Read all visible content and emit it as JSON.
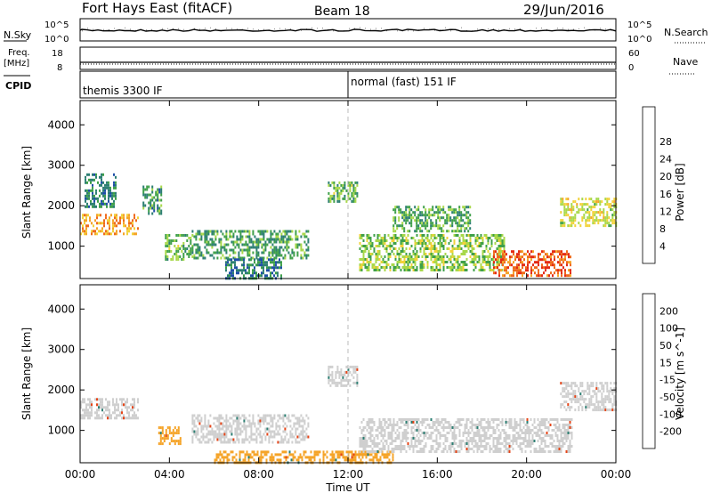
{
  "header": {
    "title": "Fort Hays East (fitACF)",
    "beam": "Beam 18",
    "date": "29/Jun/2016"
  },
  "top_panels": {
    "nsky_label": "N.Sky",
    "nsky_ticks": [
      "10^5",
      "10^0"
    ],
    "nsearch_label": "N.Search",
    "nsearch_ticks": [
      "10^5",
      "10^0"
    ],
    "freq_label_1": "Freq.",
    "freq_label_2": "[MHz]",
    "freq_ticks": [
      "18",
      "8"
    ],
    "nave_label": "Nave",
    "nave_ticks": [
      "60",
      "0"
    ],
    "cpid_label": "CPID",
    "cpid_segments": [
      {
        "label": "themis 3300 IF",
        "start_hour": 0
      },
      {
        "label": "normal (fast) 151 IF",
        "start_hour": 12
      }
    ]
  },
  "chart_data": [
    {
      "type": "heatmap",
      "quantity": "Power",
      "ylabel": "Slant Range [km]",
      "xlabel": "Time UT",
      "x_ticks": [
        "00:00",
        "04:00",
        "08:00",
        "12:00",
        "16:00",
        "20:00",
        "00:00"
      ],
      "y_ticks": [
        1000,
        2000,
        3000,
        4000
      ],
      "ylim": [
        200,
        4600
      ],
      "xlim_hours": [
        0,
        24
      ],
      "colorbar": {
        "label": "Power [dB]",
        "ticks": [
          "4",
          "8",
          "12",
          "16",
          "20",
          "24",
          "28"
        ],
        "range": [
          0,
          30
        ],
        "colors": [
          "#0000ff",
          "#1f4fa8",
          "#2d7f73",
          "#3fa04a",
          "#a8d84a",
          "#f2d23a",
          "#f5a428",
          "#ef6a1c",
          "#e32a14"
        ]
      },
      "echo_regions": [
        {
          "t0": 0.0,
          "t1": 2.6,
          "r0": 1300,
          "r1": 1800,
          "level": 22
        },
        {
          "t0": 0.2,
          "t1": 1.6,
          "r0": 2000,
          "r1": 2800,
          "level": 9
        },
        {
          "t0": 2.8,
          "t1": 3.6,
          "r0": 1800,
          "r1": 2500,
          "level": 10
        },
        {
          "t0": 3.8,
          "t1": 5.0,
          "r0": 700,
          "r1": 1300,
          "level": 13
        },
        {
          "t0": 5.0,
          "t1": 10.2,
          "r0": 700,
          "r1": 1400,
          "level": 11
        },
        {
          "t0": 6.5,
          "t1": 9.0,
          "r0": 200,
          "r1": 700,
          "level": 8
        },
        {
          "t0": 11.1,
          "t1": 12.4,
          "r0": 2100,
          "r1": 2600,
          "level": 13
        },
        {
          "t0": 12.5,
          "t1": 19.0,
          "r0": 400,
          "r1": 1300,
          "level": 14
        },
        {
          "t0": 18.5,
          "t1": 22.0,
          "r0": 300,
          "r1": 900,
          "level": 26
        },
        {
          "t0": 21.5,
          "t1": 24.0,
          "r0": 1500,
          "r1": 2200,
          "level": 17
        },
        {
          "t0": 14.0,
          "t1": 17.5,
          "r0": 1400,
          "r1": 2000,
          "level": 12
        }
      ]
    },
    {
      "type": "heatmap",
      "quantity": "Velocity",
      "ylabel": "Slant Range [km]",
      "xlabel": "Time UT",
      "x_ticks": [
        "00:00",
        "04:00",
        "08:00",
        "12:00",
        "16:00",
        "20:00",
        "00:00"
      ],
      "y_ticks": [
        1000,
        2000,
        3000,
        4000
      ],
      "ylim": [
        200,
        4600
      ],
      "xlim_hours": [
        0,
        24
      ],
      "colorbar": {
        "label": "Velocity [m s^-1]",
        "ticks": [
          "200",
          "100",
          "50",
          "15",
          "-15",
          "-50",
          "-100",
          "-200"
        ],
        "colors": [
          "#2634b8",
          "#2d7f73",
          "#42a05a",
          "#7fd34a",
          "#cfcfcf",
          "#f5a428",
          "#ef6a1c",
          "#e54417",
          "#e01010"
        ]
      },
      "echo_regions": [
        {
          "t0": 0.0,
          "t1": 2.6,
          "r0": 1300,
          "r1": 1800,
          "level": 0
        },
        {
          "t0": 3.5,
          "t1": 4.5,
          "r0": 700,
          "r1": 1100,
          "level": -40
        },
        {
          "t0": 5.0,
          "t1": 10.2,
          "r0": 700,
          "r1": 1400,
          "level": 0
        },
        {
          "t0": 6.0,
          "t1": 14.0,
          "r0": 200,
          "r1": 500,
          "level": -30
        },
        {
          "t0": 11.1,
          "t1": 12.4,
          "r0": 2100,
          "r1": 2600,
          "level": 0
        },
        {
          "t0": 12.5,
          "t1": 22.0,
          "r0": 500,
          "r1": 1300,
          "level": 0
        },
        {
          "t0": 21.5,
          "t1": 24.0,
          "r0": 1500,
          "r1": 2200,
          "level": 0
        }
      ]
    }
  ],
  "time_axis_label": "Time UT"
}
